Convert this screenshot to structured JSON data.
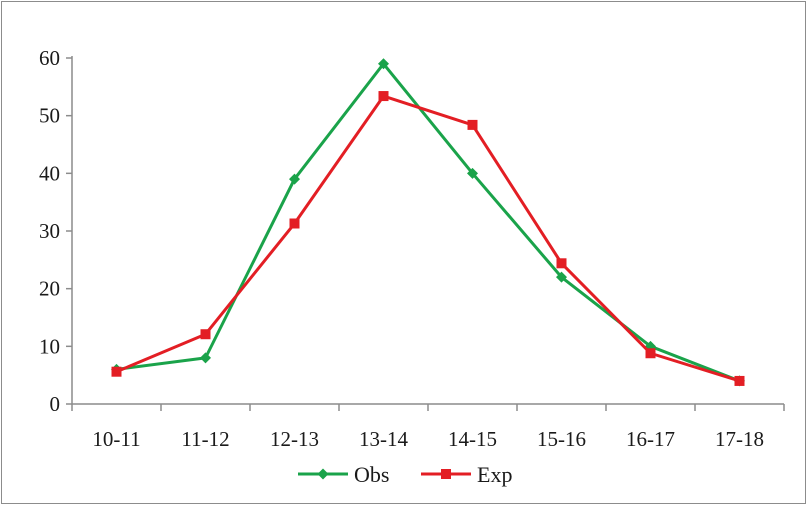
{
  "chart_data": {
    "type": "line",
    "title": "",
    "xlabel": "",
    "ylabel": "",
    "categories": [
      "10-11",
      "11-12",
      "12-13",
      "13-14",
      "14-15",
      "15-16",
      "16-17",
      "17-18"
    ],
    "ylim": [
      0,
      60
    ],
    "yticks": [
      0,
      10,
      20,
      30,
      40,
      50,
      60
    ],
    "grid": false,
    "legend_position": "bottom",
    "series": [
      {
        "name": "Obs",
        "values": [
          6,
          8,
          39,
          59,
          40,
          22,
          10,
          4
        ],
        "color": "#1aa34a",
        "marker": "diamond"
      },
      {
        "name": "Exp",
        "values": [
          5.6,
          12.1,
          31.3,
          53.4,
          48.4,
          24.4,
          8.8,
          4
        ],
        "color": "#e31e24",
        "marker": "square"
      }
    ]
  }
}
